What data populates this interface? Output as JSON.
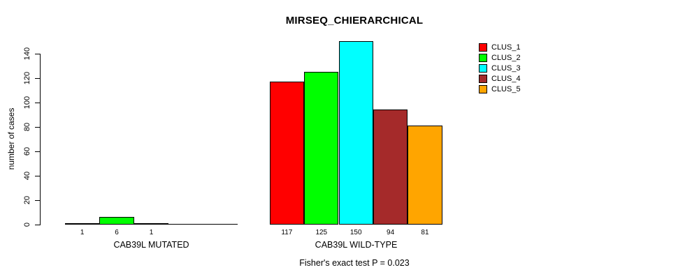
{
  "chart_data": {
    "type": "bar",
    "title": "MIRSEQ_CHIERARCHICAL",
    "ylabel": "number of cases",
    "xlabel": "",
    "ylim": [
      0,
      140
    ],
    "yticks": [
      0,
      20,
      40,
      60,
      80,
      100,
      120,
      140
    ],
    "grid": false,
    "legend_position": "top-right",
    "series_names": [
      "CLUS_1",
      "CLUS_2",
      "CLUS_3",
      "CLUS_4",
      "CLUS_5"
    ],
    "series_colors": [
      "#FF0000",
      "#00FF00",
      "#00FFFF",
      "#A52A2A",
      "#FFA500"
    ],
    "groups": [
      {
        "label": "CAB39L MUTATED",
        "values": [
          1,
          6,
          1,
          0,
          0
        ],
        "shown_value_labels": [
          "1",
          "6",
          "1",
          "",
          ""
        ]
      },
      {
        "label": "CAB39L WILD-TYPE",
        "values": [
          117,
          125,
          150,
          94,
          81
        ],
        "shown_value_labels": [
          "117",
          "125",
          "150",
          "94",
          "81"
        ]
      }
    ],
    "annotation": "Fisher's exact test P = 0.023"
  }
}
